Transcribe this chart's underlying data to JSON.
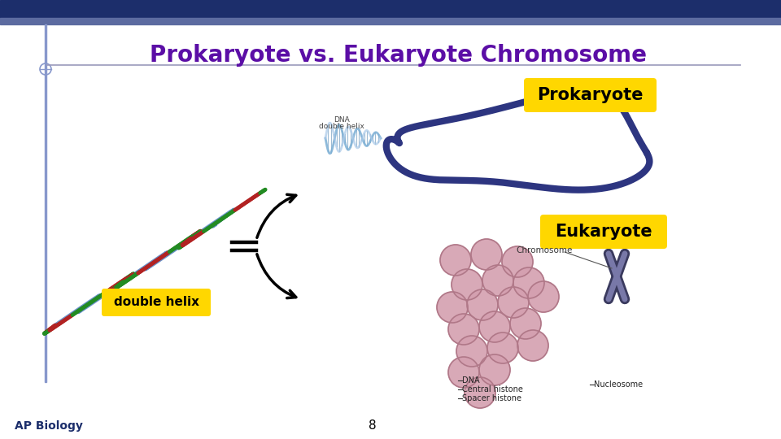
{
  "title": "Prokaryote vs. Eukaryote Chromosome",
  "title_color": "#5B0EA6",
  "title_fontsize": 20,
  "label_prokaryote": "Prokaryote",
  "label_eukaryote": "Eukaryote",
  "label_double_helix": "double helix",
  "label_ap_biology": "AP Biology",
  "label_page": "8",
  "label_box_color": "#FFD700",
  "label_text_color": "#000000",
  "bg_color": "#FFFFFF",
  "top_bar_color1": "#1C2E6B",
  "top_bar_color2": "#5C6BA0",
  "left_bar_color": "#8898CC",
  "title_line_color": "#9999BB",
  "prokaryote_chromosome_color": "#2D3580",
  "ap_biology_color": "#1C2E6B",
  "page_color": "#000000",
  "dna_label_color": "#333333",
  "chromosome_label_color": "#333333"
}
